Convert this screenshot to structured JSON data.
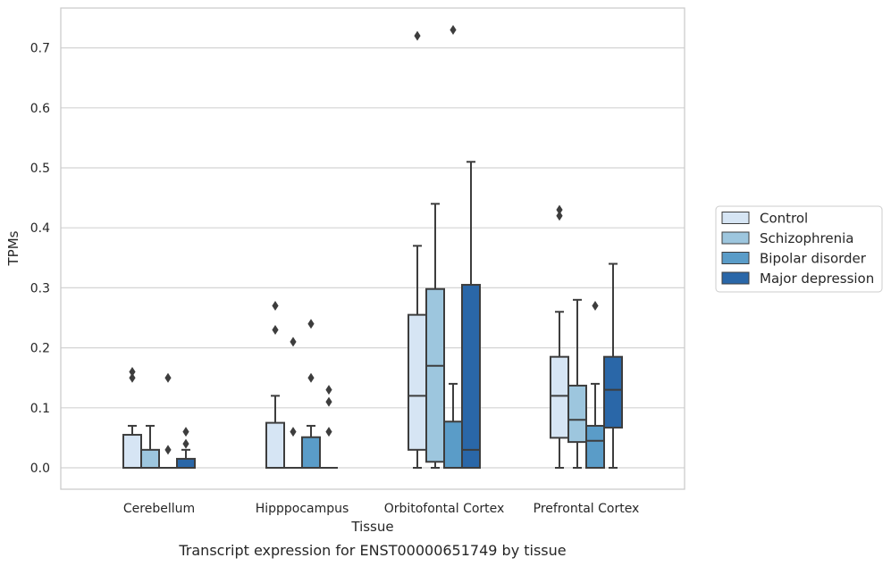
{
  "caption": "Transcript expression for ENST00000651749 by tissue",
  "chart_data": {
    "type": "boxplot",
    "xlabel": "Tissue",
    "ylabel": "TPMs",
    "ylim": [
      -0.035,
      0.77
    ],
    "yticks": [
      0.0,
      0.1,
      0.2,
      0.3,
      0.4,
      0.5,
      0.6,
      0.7
    ],
    "ytick_labels": [
      "0.0",
      "0.1",
      "0.2",
      "0.3",
      "0.4",
      "0.5",
      "0.6",
      "0.7"
    ],
    "grid": "horizontal",
    "legend_position": "right",
    "categories": [
      "Cerebellum",
      "Hipppocampus",
      "Orbitofontal Cortex",
      "Prefrontal Cortex"
    ],
    "series": [
      {
        "name": "Control",
        "color": "#d6e5f4",
        "boxes": [
          {
            "whislo": 0.0,
            "q1": 0.0,
            "med": 0.0,
            "q3": 0.055,
            "whishi": 0.07,
            "fliers": [
              0.15,
              0.16
            ]
          },
          {
            "whislo": 0.0,
            "q1": 0.0,
            "med": 0.0,
            "q3": 0.075,
            "whishi": 0.12,
            "fliers": [
              0.23,
              0.27
            ]
          },
          {
            "whislo": 0.0,
            "q1": 0.03,
            "med": 0.12,
            "q3": 0.255,
            "whishi": 0.37,
            "fliers": [
              0.72
            ]
          },
          {
            "whislo": 0.0,
            "q1": 0.05,
            "med": 0.12,
            "q3": 0.185,
            "whishi": 0.26,
            "fliers": [
              0.42,
              0.43
            ]
          }
        ]
      },
      {
        "name": "Schizophrenia",
        "color": "#9dc6de",
        "boxes": [
          {
            "whislo": 0.0,
            "q1": 0.0,
            "med": 0.0,
            "q3": 0.03,
            "whishi": 0.07,
            "fliers": []
          },
          {
            "whislo": 0.0,
            "q1": 0.0,
            "med": 0.0,
            "q3": 0.0,
            "whishi": 0.0,
            "fliers": [
              0.06,
              0.21
            ]
          },
          {
            "whislo": 0.0,
            "q1": 0.01,
            "med": 0.17,
            "q3": 0.298,
            "whishi": 0.44,
            "fliers": []
          },
          {
            "whislo": 0.0,
            "q1": 0.043,
            "med": 0.08,
            "q3": 0.137,
            "whishi": 0.28,
            "fliers": []
          }
        ]
      },
      {
        "name": "Bipolar disorder",
        "color": "#5a9cc8",
        "boxes": [
          {
            "whislo": 0.0,
            "q1": 0.0,
            "med": 0.0,
            "q3": 0.0,
            "whishi": 0.0,
            "fliers": [
              0.03,
              0.15
            ]
          },
          {
            "whislo": 0.0,
            "q1": 0.0,
            "med": 0.0,
            "q3": 0.051,
            "whishi": 0.07,
            "fliers": [
              0.15,
              0.24
            ]
          },
          {
            "whislo": 0.0,
            "q1": 0.0,
            "med": 0.0,
            "q3": 0.077,
            "whishi": 0.14,
            "fliers": [
              0.73
            ]
          },
          {
            "whislo": 0.0,
            "q1": 0.0,
            "med": 0.045,
            "q3": 0.07,
            "whishi": 0.14,
            "fliers": [
              0.27
            ]
          }
        ]
      },
      {
        "name": "Major depression",
        "color": "#2a67a8",
        "boxes": [
          {
            "whislo": 0.0,
            "q1": 0.0,
            "med": 0.0,
            "q3": 0.015,
            "whishi": 0.03,
            "fliers": [
              0.04,
              0.06
            ]
          },
          {
            "whislo": 0.0,
            "q1": 0.0,
            "med": 0.0,
            "q3": 0.0,
            "whishi": 0.0,
            "fliers": [
              0.06,
              0.11,
              0.13
            ]
          },
          {
            "whislo": 0.0,
            "q1": 0.0,
            "med": 0.03,
            "q3": 0.305,
            "whishi": 0.51,
            "fliers": []
          },
          {
            "whislo": 0.0,
            "q1": 0.067,
            "med": 0.13,
            "q3": 0.185,
            "whishi": 0.34,
            "fliers": []
          }
        ]
      }
    ]
  }
}
